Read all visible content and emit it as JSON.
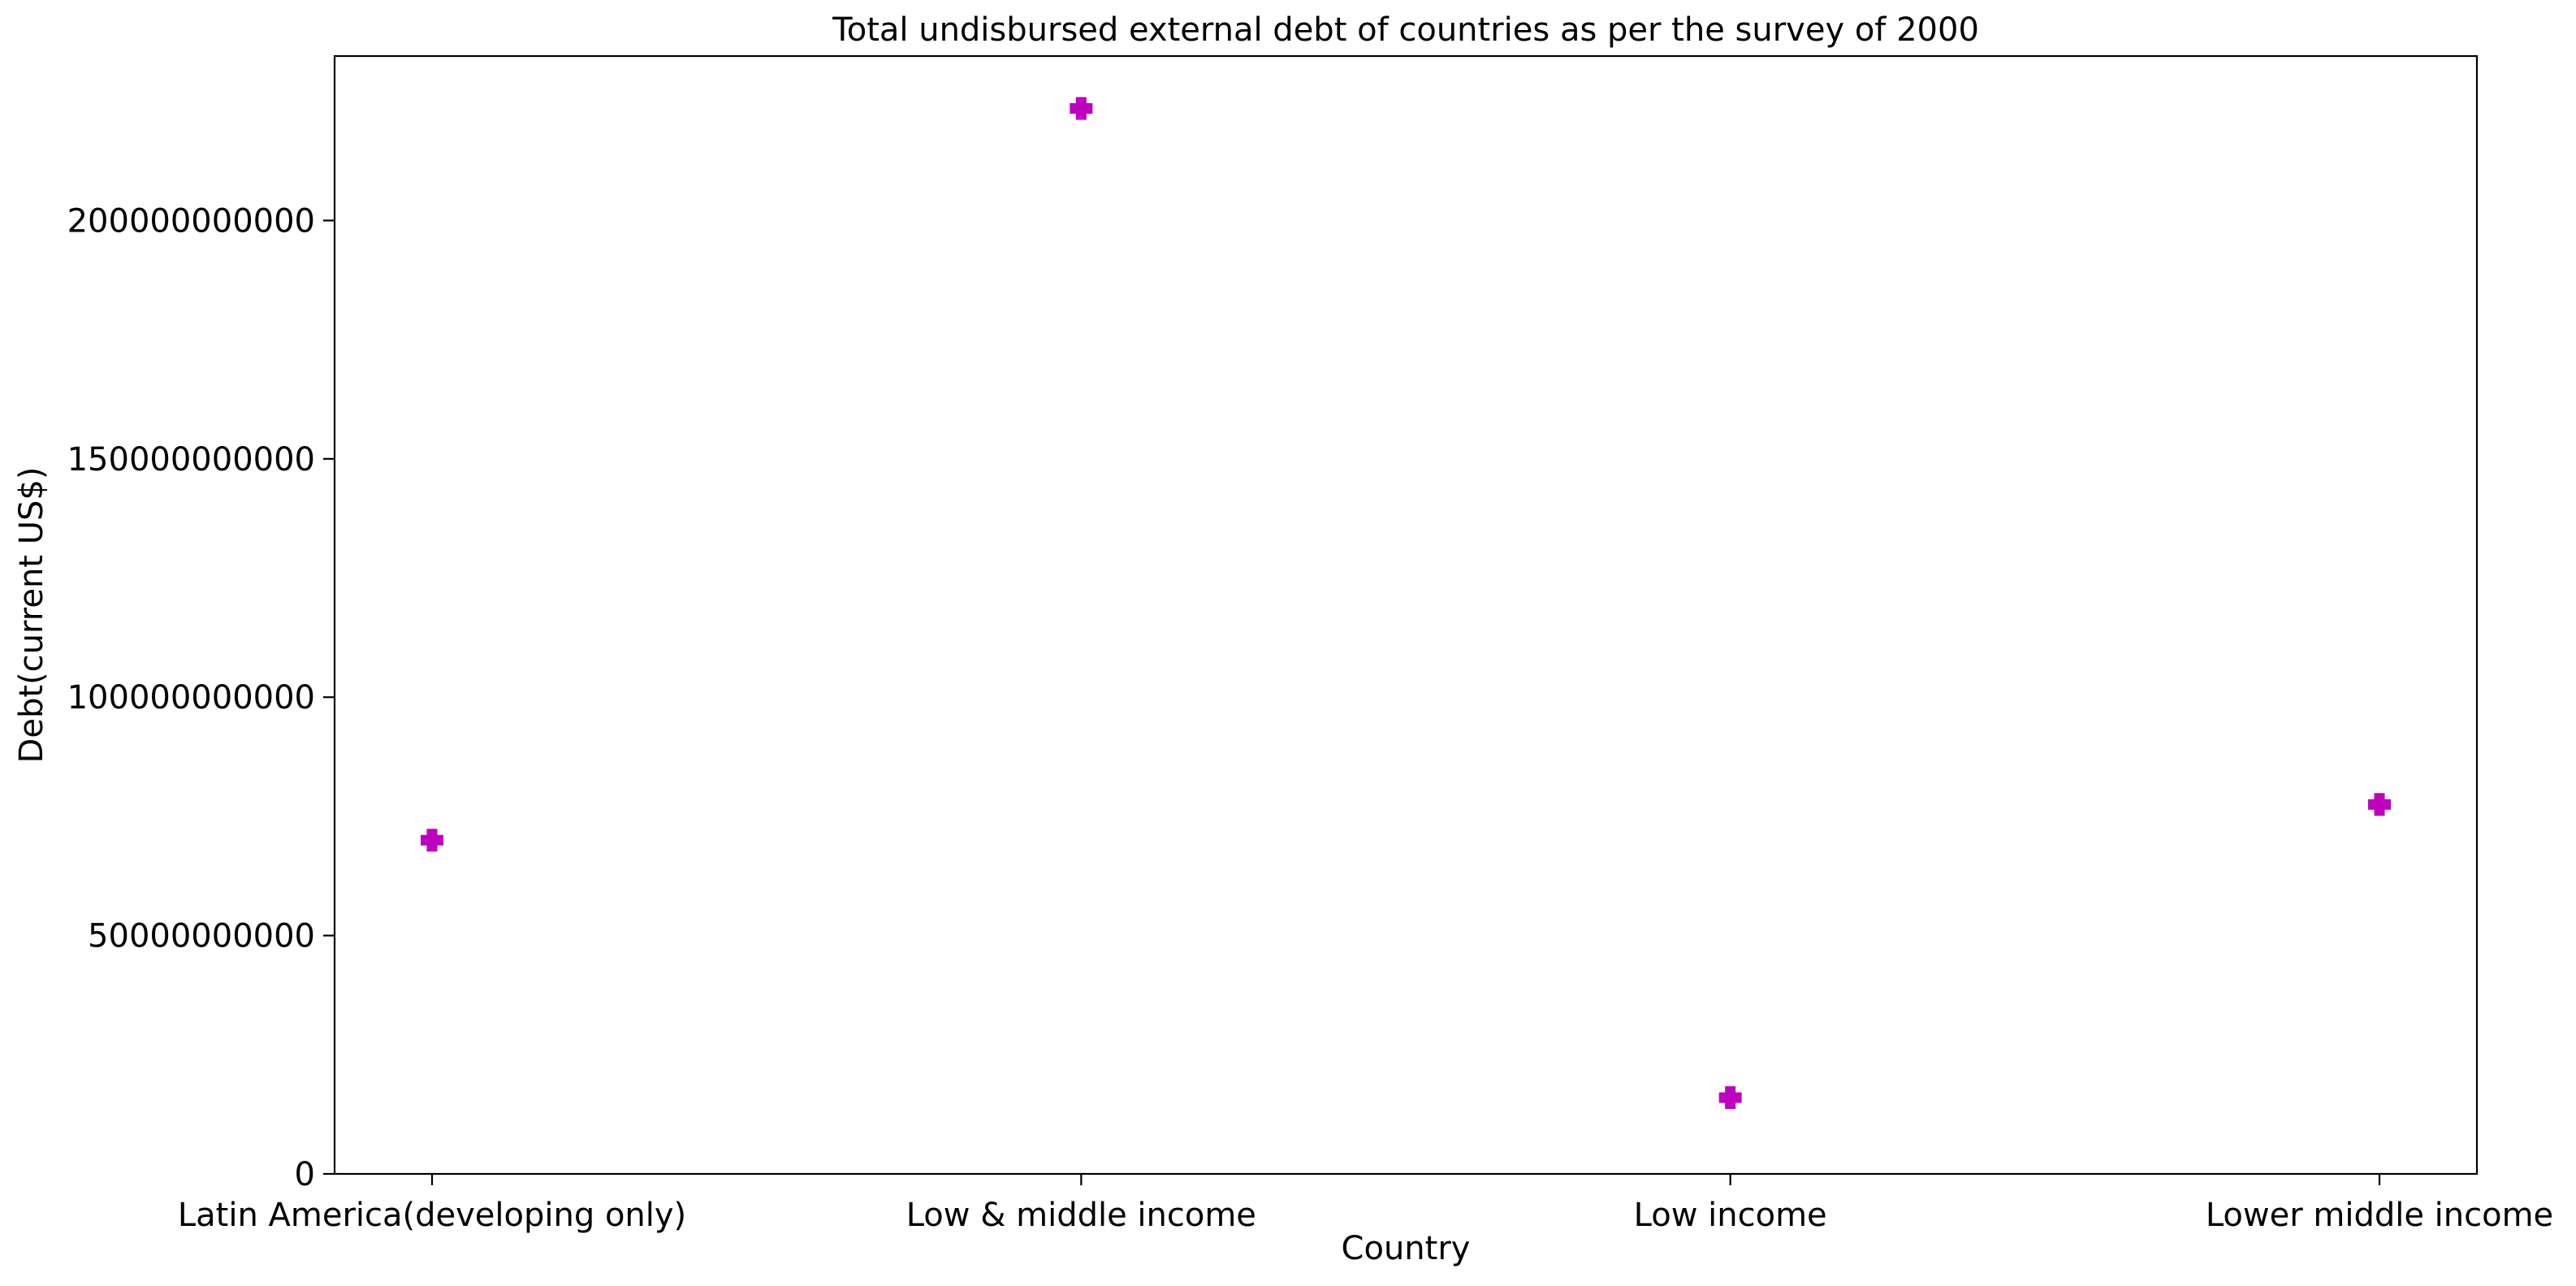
{
  "chart_data": {
    "type": "scatter",
    "title": "Total undisbursed external debt of countries as per the survey of 2000",
    "xlabel": "Country",
    "ylabel": "Debt(current US$)",
    "categories": [
      "Latin America(developing only)",
      "Low & middle income",
      "Low income",
      "Lower middle income"
    ],
    "series": [
      {
        "values": [
          70000000000,
          223500000000,
          16000000000,
          77500000000
        ],
        "color": "#bf00bf",
        "marker": "plus-filled"
      }
    ],
    "ylim": [
      0,
      234500000000
    ],
    "yticks": [
      0,
      50000000000,
      100000000000,
      150000000000,
      200000000000
    ],
    "ytick_labels": [
      "0",
      "50000000000",
      "100000000000",
      "150000000000",
      "200000000000"
    ],
    "grid": false,
    "legend": "none"
  }
}
